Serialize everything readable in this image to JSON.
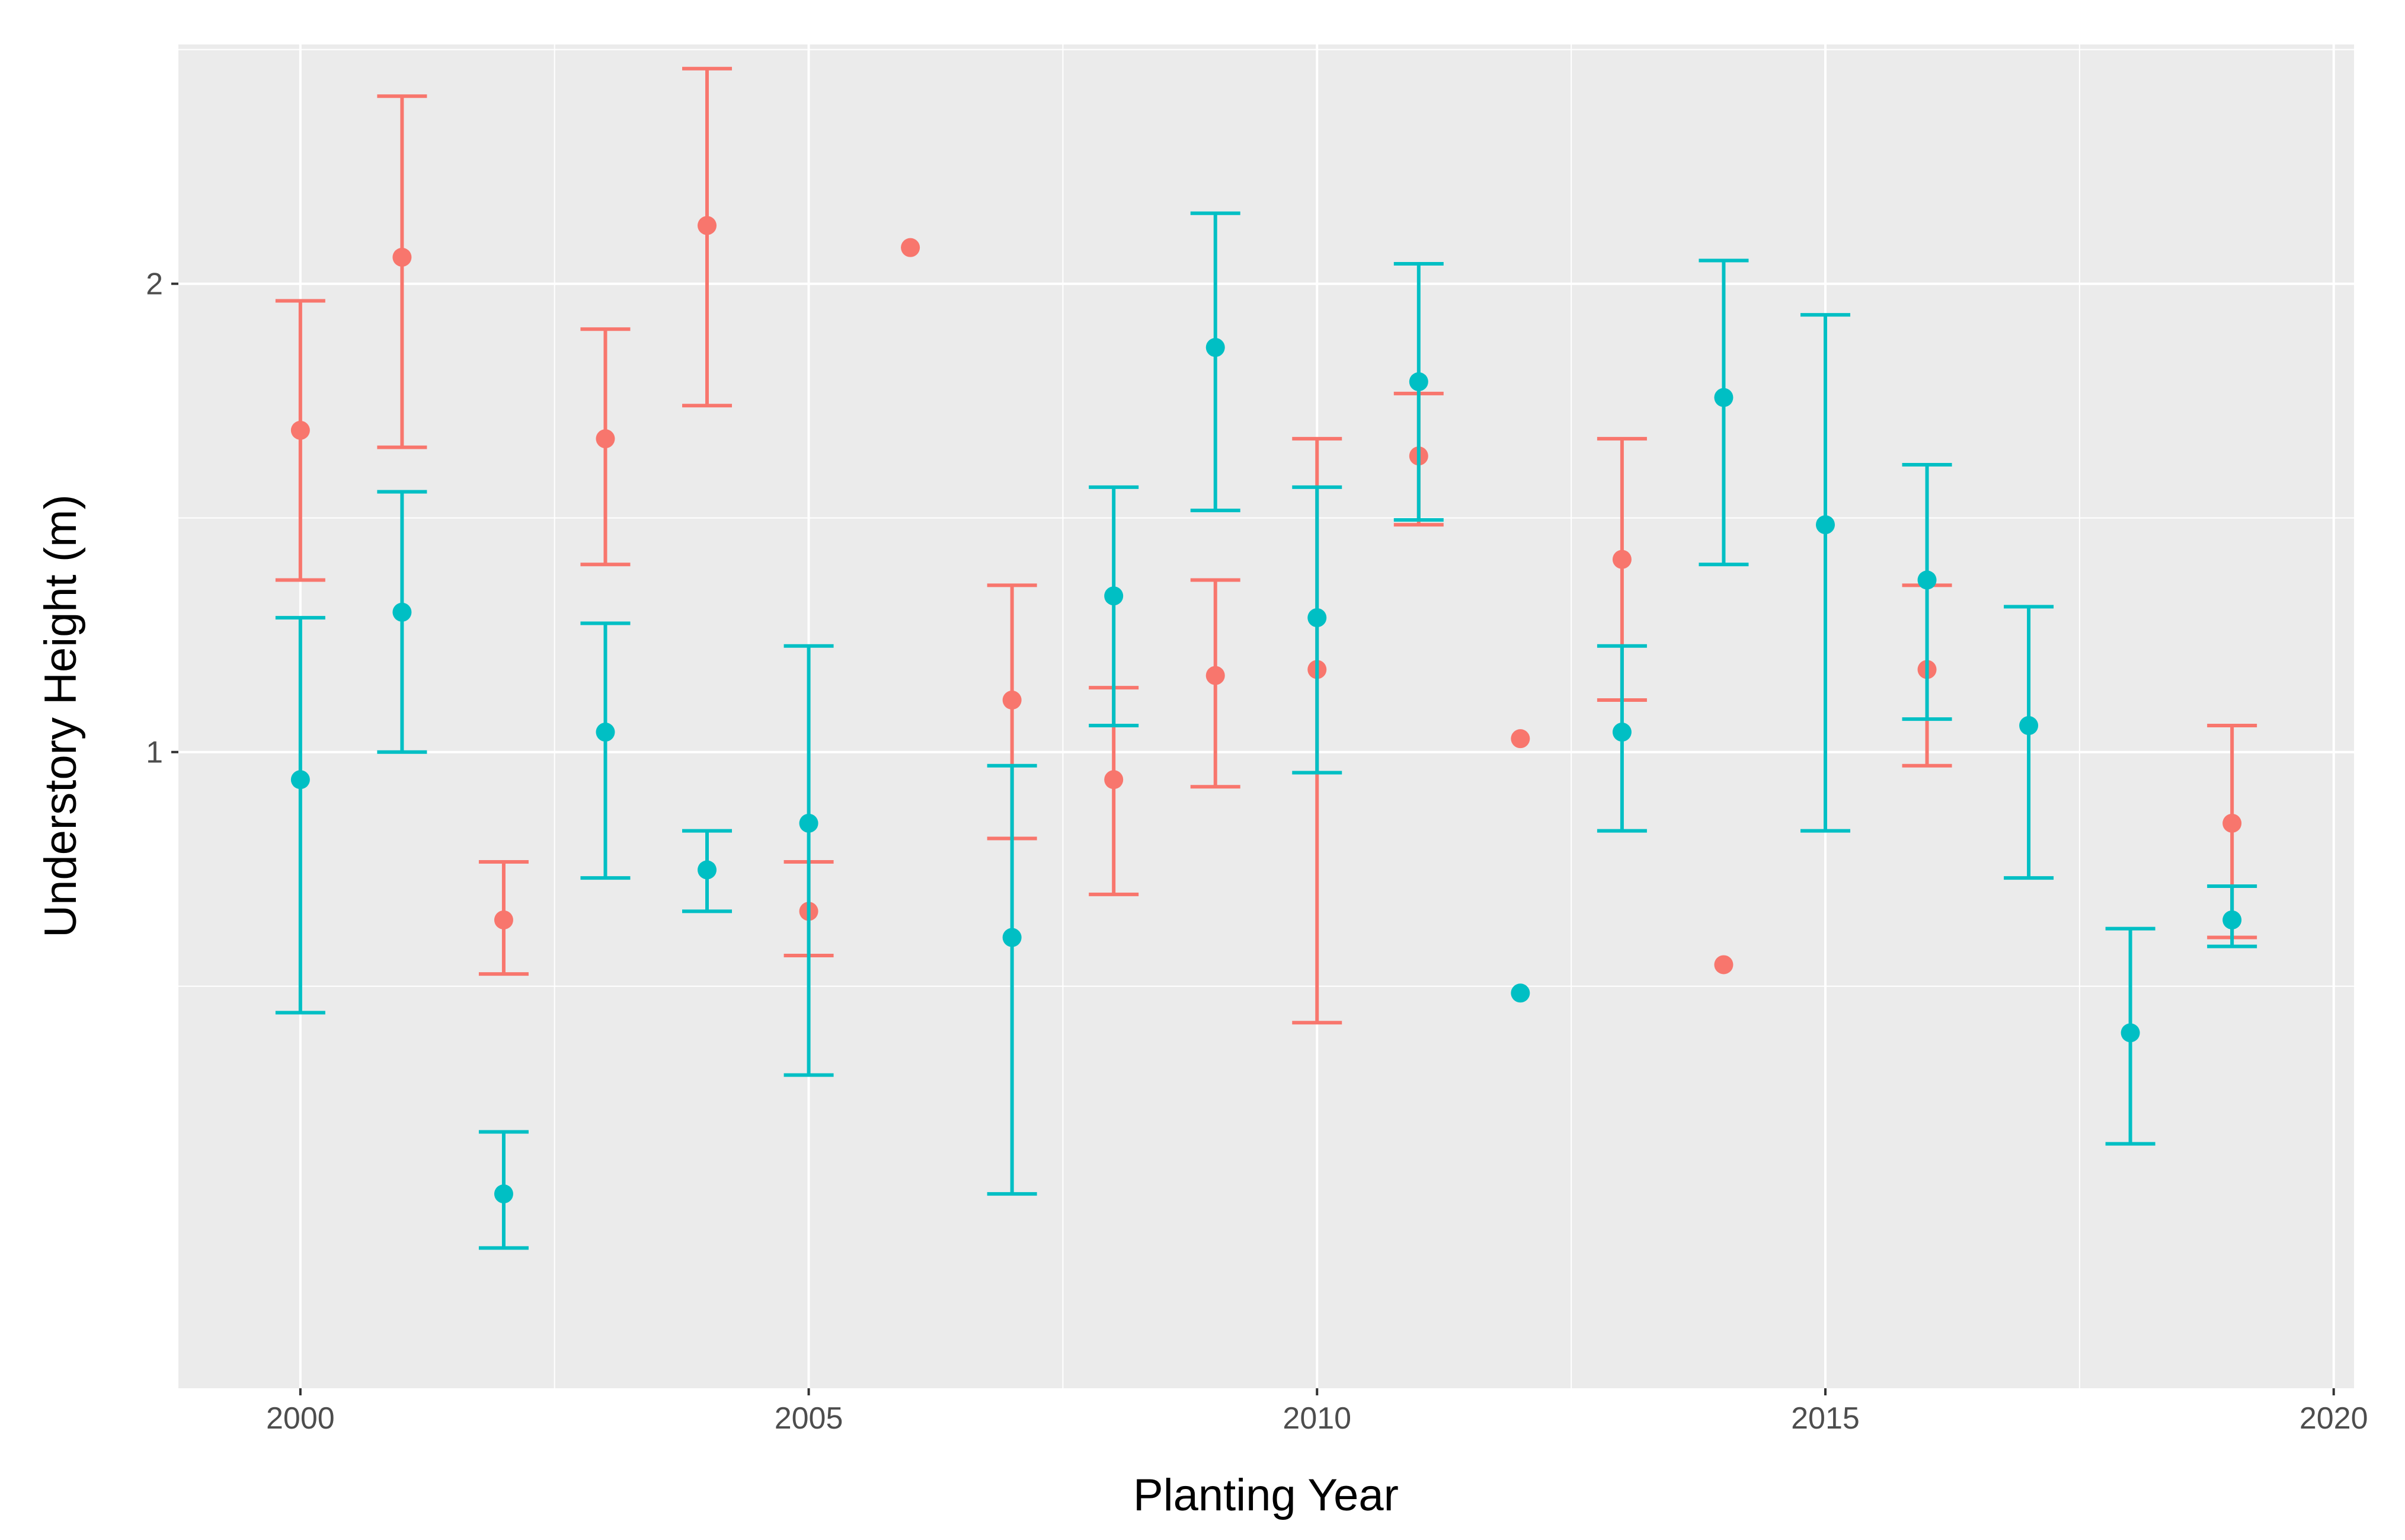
{
  "chart_data": {
    "type": "scatter",
    "subtype": "point-with-errorbars",
    "xlabel": "Planting Year",
    "ylabel": "Understory Height (m)",
    "y_scale": "log",
    "xlim": [
      1998.8,
      2020.2
    ],
    "ylim": [
      0.39,
      2.85
    ],
    "x_ticks": [
      2000,
      2005,
      2010,
      2015,
      2020
    ],
    "y_ticks": [
      1,
      2
    ],
    "x_tick_labels": [
      "2000",
      "2005",
      "2010",
      "2015",
      "2020"
    ],
    "y_tick_labels": [
      "1",
      "2"
    ],
    "grid": true,
    "legend": "none",
    "series": [
      {
        "name": "salmon",
        "color": "#F8766D",
        "points": [
          {
            "x": 2000,
            "y": 1.61,
            "lo": 1.29,
            "hi": 1.95
          },
          {
            "x": 2001,
            "y": 2.08,
            "lo": 1.57,
            "hi": 2.64
          },
          {
            "x": 2002,
            "y": 0.78,
            "lo": 0.72,
            "hi": 0.85
          },
          {
            "x": 2003,
            "y": 1.59,
            "lo": 1.32,
            "hi": 1.87
          },
          {
            "x": 2004,
            "y": 2.18,
            "lo": 1.67,
            "hi": 2.75
          },
          {
            "x": 2005,
            "y": 0.79,
            "lo": 0.74,
            "hi": 0.85
          },
          {
            "x": 2006,
            "y": 2.11,
            "lo": null,
            "hi": null
          },
          {
            "x": 2007,
            "y": 1.08,
            "lo": 0.88,
            "hi": 1.28
          },
          {
            "x": 2008,
            "y": 0.96,
            "lo": 0.81,
            "hi": 1.1
          },
          {
            "x": 2009,
            "y": 1.12,
            "lo": 0.95,
            "hi": 1.29
          },
          {
            "x": 2010,
            "y": 1.13,
            "lo": 0.67,
            "hi": 1.59
          },
          {
            "x": 2011,
            "y": 1.55,
            "lo": 1.4,
            "hi": 1.7
          },
          {
            "x": 2012,
            "y": 1.02,
            "lo": null,
            "hi": null
          },
          {
            "x": 2013,
            "y": 1.33,
            "lo": 1.08,
            "hi": 1.59
          },
          {
            "x": 2014,
            "y": 0.73,
            "lo": null,
            "hi": null
          },
          {
            "x": 2016,
            "y": 1.13,
            "lo": 0.98,
            "hi": 1.28
          },
          {
            "x": 2019,
            "y": 0.9,
            "lo": 0.76,
            "hi": 1.04
          }
        ]
      },
      {
        "name": "teal",
        "color": "#00BFC4",
        "points": [
          {
            "x": 2000,
            "y": 0.96,
            "lo": 0.68,
            "hi": 1.22
          },
          {
            "x": 2001,
            "y": 1.23,
            "lo": 1.0,
            "hi": 1.47
          },
          {
            "x": 2002,
            "y": 0.52,
            "lo": 0.48,
            "hi": 0.57
          },
          {
            "x": 2003,
            "y": 1.03,
            "lo": 0.83,
            "hi": 1.21
          },
          {
            "x": 2004,
            "y": 0.84,
            "lo": 0.79,
            "hi": 0.89
          },
          {
            "x": 2005,
            "y": 0.9,
            "lo": 0.62,
            "hi": 1.17
          },
          {
            "x": 2007,
            "y": 0.76,
            "lo": 0.52,
            "hi": 0.98
          },
          {
            "x": 2008,
            "y": 1.26,
            "lo": 1.04,
            "hi": 1.48
          },
          {
            "x": 2009,
            "y": 1.82,
            "lo": 1.43,
            "hi": 2.22
          },
          {
            "x": 2010,
            "y": 1.22,
            "lo": 0.97,
            "hi": 1.48
          },
          {
            "x": 2011,
            "y": 1.73,
            "lo": 1.41,
            "hi": 2.06
          },
          {
            "x": 2012,
            "y": 0.7,
            "lo": null,
            "hi": null
          },
          {
            "x": 2013,
            "y": 1.03,
            "lo": 0.89,
            "hi": 1.17
          },
          {
            "x": 2014,
            "y": 1.69,
            "lo": 1.32,
            "hi": 2.07
          },
          {
            "x": 2015,
            "y": 1.4,
            "lo": 0.89,
            "hi": 1.91
          },
          {
            "x": 2016,
            "y": 1.29,
            "lo": 1.05,
            "hi": 1.53
          },
          {
            "x": 2017,
            "y": 1.04,
            "lo": 0.83,
            "hi": 1.24
          },
          {
            "x": 2018,
            "y": 0.66,
            "lo": 0.56,
            "hi": 0.77
          },
          {
            "x": 2019,
            "y": 0.78,
            "lo": 0.75,
            "hi": 0.82
          }
        ]
      }
    ]
  }
}
